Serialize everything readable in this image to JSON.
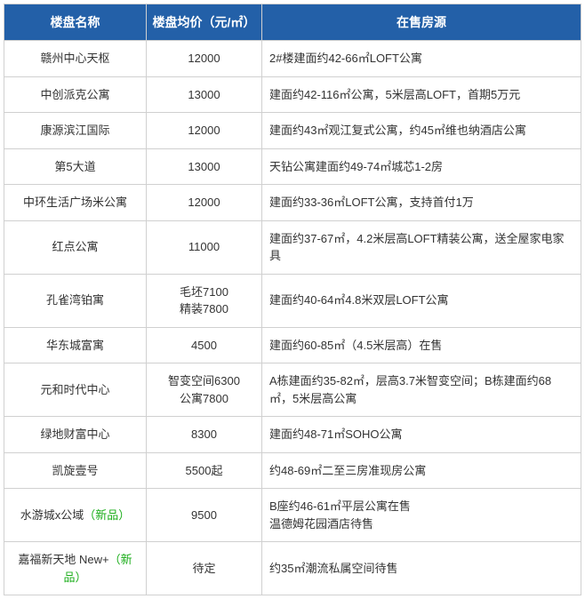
{
  "table": {
    "header_bg": "#2360a8",
    "header_color": "#ffffff",
    "border_color": "#d0d0d0",
    "text_color": "#333333",
    "new_tag_color": "#1aad19",
    "columns": [
      "楼盘名称",
      "楼盘均价（元/㎡）",
      "在售房源"
    ],
    "rows": [
      {
        "name": "赣州中心天枢",
        "new": false,
        "price": "12000",
        "desc": "2#楼建面约42-66㎡LOFT公寓"
      },
      {
        "name": "中创派克公寓",
        "new": false,
        "price": "13000",
        "desc": "建面约42-116㎡公寓，5米层高LOFT，首期5万元"
      },
      {
        "name": "康源滨江国际",
        "new": false,
        "price": "12000",
        "desc": "建面约43㎡观江复式公寓，约45㎡维也纳酒店公寓"
      },
      {
        "name": "第5大道",
        "new": false,
        "price": "13000",
        "desc": "天钻公寓建面约49-74㎡城芯1-2房"
      },
      {
        "name": "中环生活广场米公寓",
        "new": false,
        "price": "12000",
        "desc": "建面约33-36㎡LOFT公寓，支持首付1万"
      },
      {
        "name": "红点公寓",
        "new": false,
        "price": "11000",
        "desc": "建面约37-67㎡，4.2米层高LOFT精装公寓，送全屋家电家具"
      },
      {
        "name": "孔雀湾铂寓",
        "new": false,
        "price": "毛坯7100\n精装7800",
        "desc": "建面约40-64㎡4.8米双层LOFT公寓"
      },
      {
        "name": "华东城富寓",
        "new": false,
        "price": "4500",
        "desc": "建面约60-85㎡（4.5米层高）在售"
      },
      {
        "name": "元和时代中心",
        "new": false,
        "price": "智变空间6300\n公寓7800",
        "desc": "A栋建面约35-82㎡，层高3.7米智变空间；B栋建面约68 ㎡，5米层高公寓"
      },
      {
        "name": "绿地财富中心",
        "new": false,
        "price": "8300",
        "desc": "建面约48-71㎡SOHO公寓"
      },
      {
        "name": "凯旋壹号",
        "new": false,
        "price": "5500起",
        "desc": "约48-69㎡二至三房准现房公寓"
      },
      {
        "name": "水游城x公域",
        "new": true,
        "price": "9500",
        "desc": "B座约46-61㎡平层公寓在售\n温德姆花园酒店待售"
      },
      {
        "name": "嘉福新天地 New+",
        "new": true,
        "price": "待定",
        "desc": "约35㎡潮流私属空间待售"
      }
    ],
    "new_label": "（新品）"
  }
}
